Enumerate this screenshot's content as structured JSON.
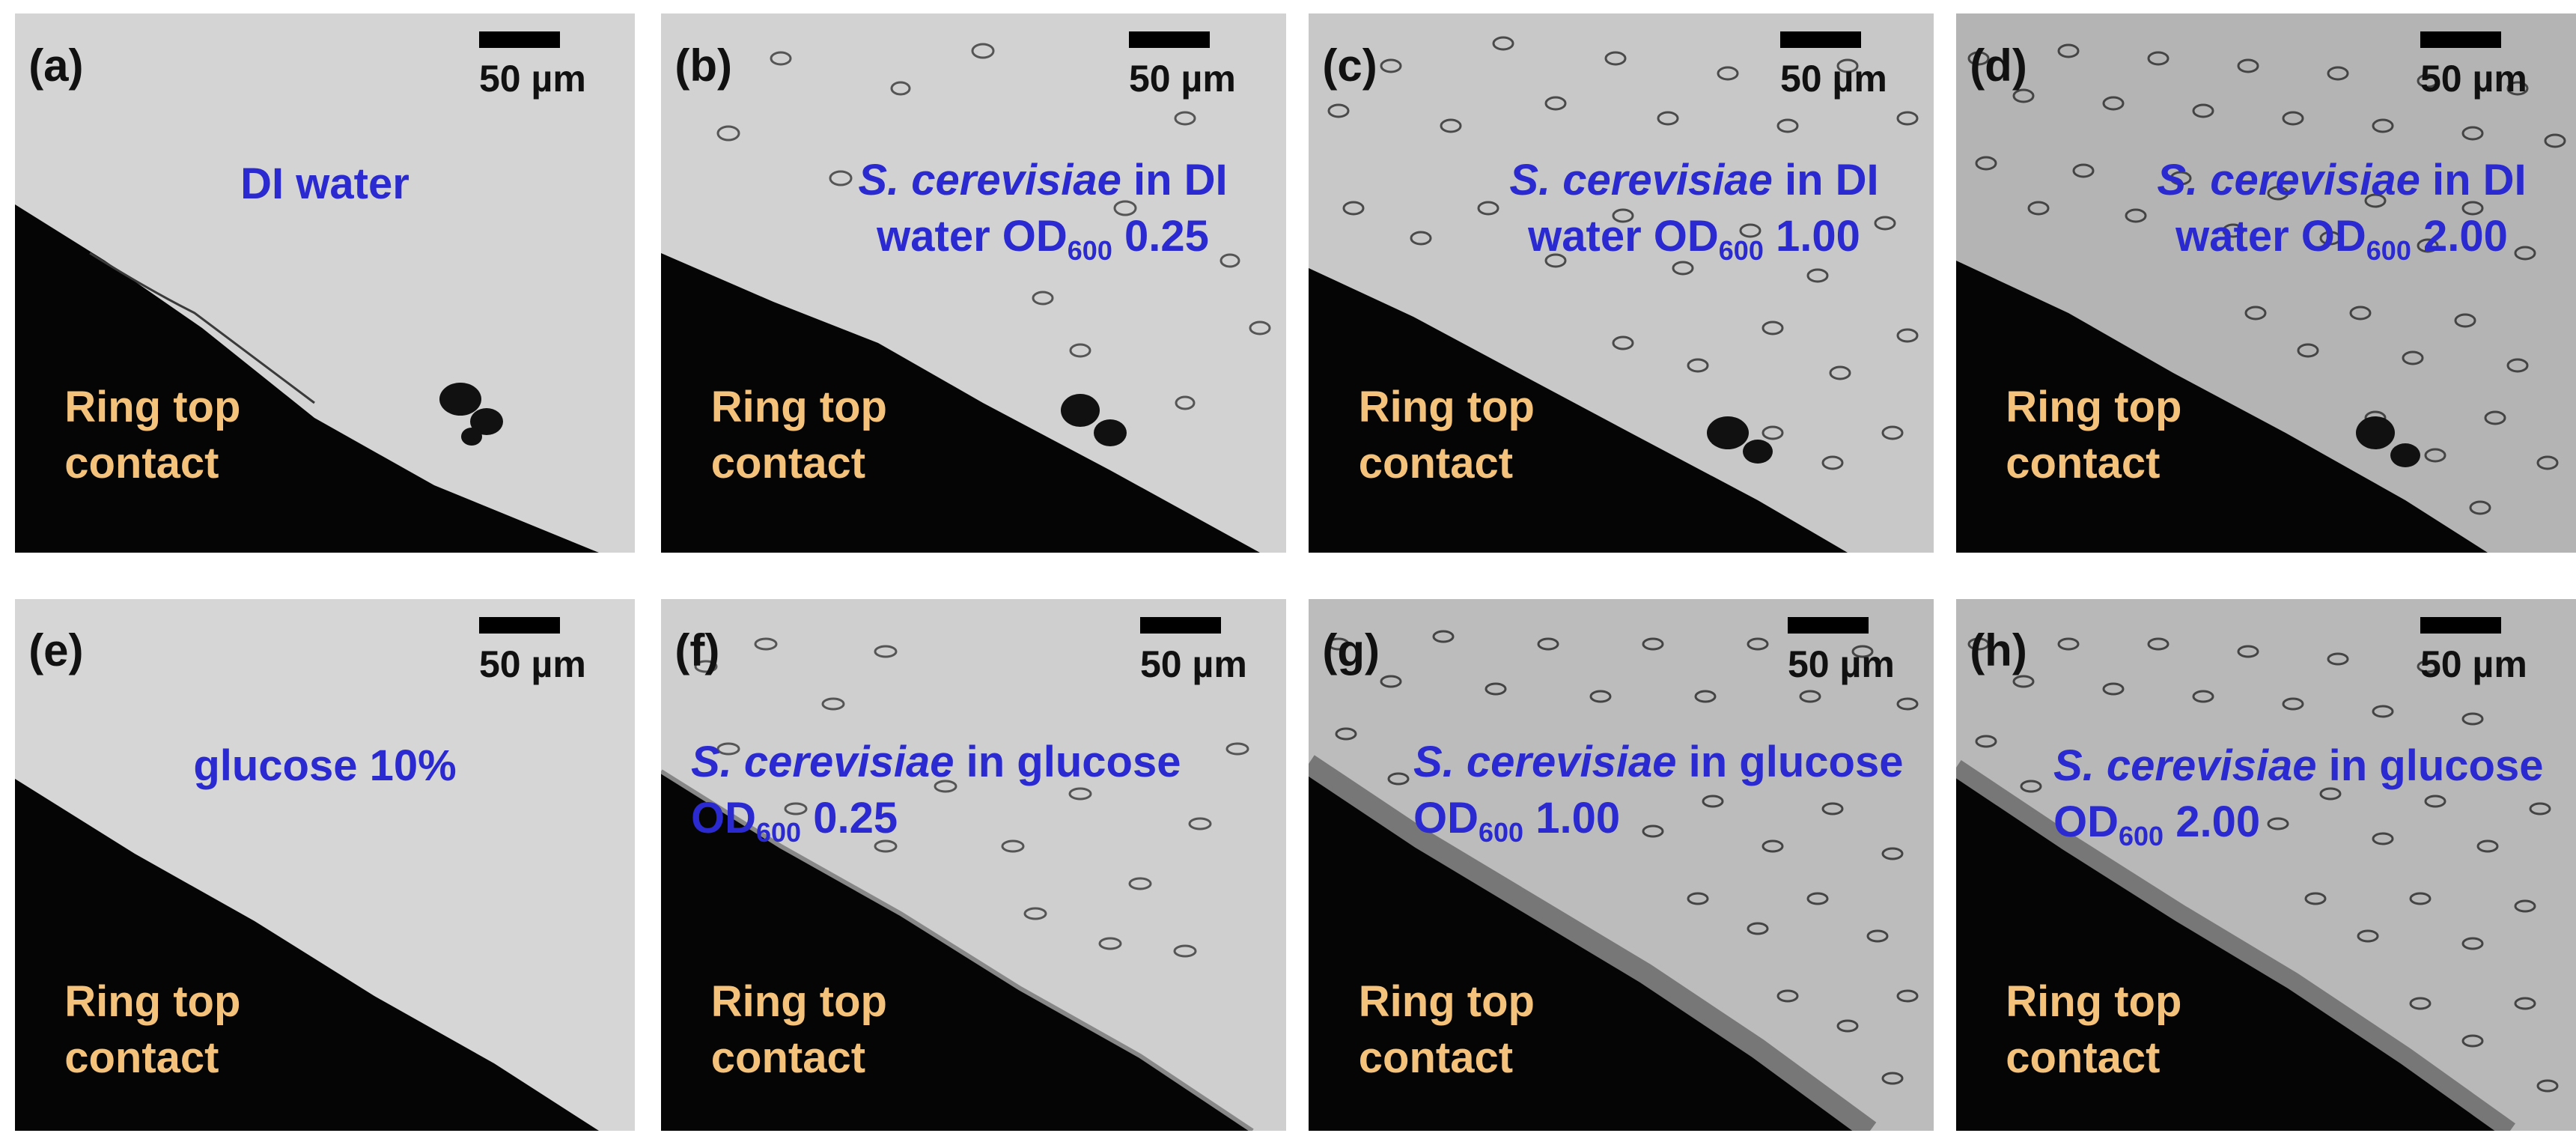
{
  "scale_bar_label": "50 µm",
  "ring_label_line1": "Ring top",
  "ring_label_line2": "contact",
  "panels": [
    {
      "label": "(a)",
      "desc_line1": "DI water"
    },
    {
      "label": "(b)",
      "species": "S. cerevisiae",
      "desc_line1_rest": " in DI",
      "desc_line2_pre": "water OD",
      "desc_sub": "600",
      "desc_value": " 0.25"
    },
    {
      "label": "(c)",
      "species": "S. cerevisiae",
      "desc_line1_rest": " in DI",
      "desc_line2_pre": "water OD",
      "desc_sub": "600",
      "desc_value": " 1.00"
    },
    {
      "label": "(d)",
      "species": "S. cerevisiae",
      "desc_line1_rest": " in DI",
      "desc_line2_pre": "water OD",
      "desc_sub": "600",
      "desc_value": " 2.00"
    },
    {
      "label": "(e)",
      "desc_line1": "glucose 10%"
    },
    {
      "label": "(f)",
      "species": "S. cerevisiae",
      "desc_line1_rest": " in glucose",
      "desc_line2_pre": "OD",
      "desc_sub": "600",
      "desc_value": " 0.25"
    },
    {
      "label": "(g)",
      "species": "S. cerevisiae",
      "desc_line1_rest": " in glucose",
      "desc_line2_pre": "OD",
      "desc_sub": "600",
      "desc_value": " 1.00"
    },
    {
      "label": "(h)",
      "species": "S. cerevisiae",
      "desc_line1_rest": " in glucose",
      "desc_line2_pre": "OD",
      "desc_sub": "600",
      "desc_value": " 2.00"
    }
  ],
  "colors": {
    "label_blue": "#2a2ad0",
    "ring_label_orange": "#f4c27a",
    "contact_black": "#050505"
  }
}
